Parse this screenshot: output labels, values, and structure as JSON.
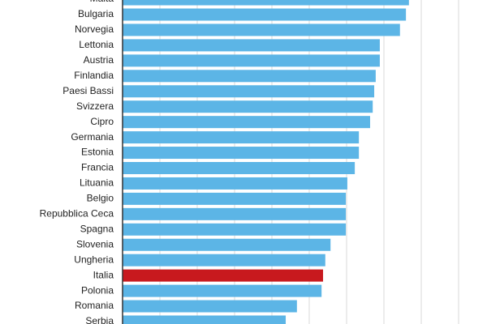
{
  "chart_data": {
    "type": "hbar",
    "categories": [
      "Malta",
      "Bulgaria",
      "Norvegia",
      "Lettonia",
      "Austria",
      "Finlandia",
      "Paesi Bassi",
      "Svizzera",
      "Cipro",
      "Germania",
      "Estonia",
      "Francia",
      "Lituania",
      "Belgio",
      "Repubblica Ceca",
      "Spagna",
      "Slovenia",
      "Ungheria",
      "Italia",
      "Polonia",
      "Romania",
      "Serbia"
    ],
    "values": [
      7.67,
      7.59,
      7.43,
      6.89,
      6.89,
      6.78,
      6.74,
      6.7,
      6.63,
      6.33,
      6.33,
      6.22,
      6.02,
      5.98,
      5.98,
      5.98,
      5.57,
      5.43,
      5.37,
      5.33,
      4.67,
      4.37
    ],
    "colors": [
      "#5cb5e6",
      "#5cb5e6",
      "#5cb5e6",
      "#5cb5e6",
      "#5cb5e6",
      "#5cb5e6",
      "#5cb5e6",
      "#5cb5e6",
      "#5cb5e6",
      "#5cb5e6",
      "#5cb5e6",
      "#5cb5e6",
      "#5cb5e6",
      "#5cb5e6",
      "#5cb5e6",
      "#5cb5e6",
      "#5cb5e6",
      "#5cb5e6",
      "#c8191e",
      "#5cb5e6",
      "#5cb5e6",
      "#5cb5e6"
    ],
    "xlim": [
      0,
      9
    ],
    "gridlines": [
      1,
      2,
      3,
      4,
      5,
      6,
      7,
      8,
      9
    ],
    "grid": true
  }
}
